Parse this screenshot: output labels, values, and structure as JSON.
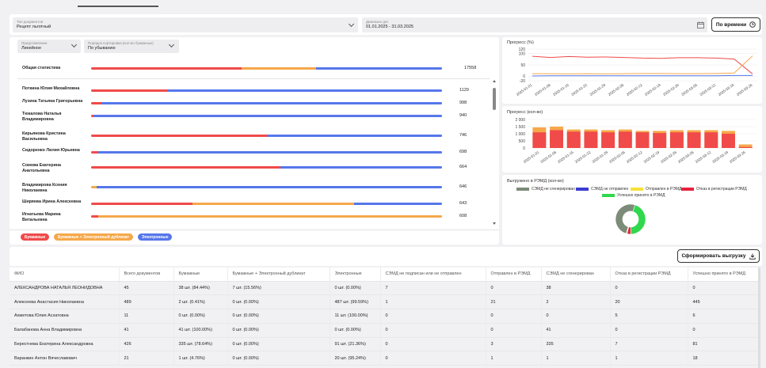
{
  "filters": {
    "doc_type": {
      "label": "Тип документов",
      "value": "Рецепт льготный"
    },
    "date_range": {
      "label": "Диапазон дат",
      "value": "01.01.2025 - 31.03.2025"
    },
    "time_button": "По времени",
    "view": {
      "label": "Представление",
      "value": "Линейное"
    },
    "sort": {
      "label": "Порядок сортировки (кол-во бумажных)",
      "value": "По убыванию"
    }
  },
  "colors": {
    "paper": "#f04a4a",
    "paper_electronic": "#f6a84a",
    "electronic": "#5677ea",
    "not_generated": "#7d8b79",
    "not_sent": "#3b3bd1",
    "sent": "#f6e13b",
    "refused": "#e8213d",
    "accepted": "#2fd84c"
  },
  "overall": {
    "name": "Общая статистика",
    "count": "17558",
    "paper": 43,
    "paper_electronic": 21,
    "electronic": 36
  },
  "employees": [
    {
      "name": "Поткина Юлия Михайловна",
      "count": "1129",
      "paper": 22,
      "paper_electronic": 0,
      "electronic": 78
    },
    {
      "name": "Лузина Татьяна Григорьевна",
      "count": "998",
      "paper": 3,
      "paper_electronic": 0,
      "electronic": 97
    },
    {
      "name": "Тюкалова Наталья Владимировна",
      "count": "940",
      "paper": 0.6,
      "paper_electronic": 0,
      "electronic": 99.4
    },
    {
      "name": "Кирьянова Кристина Васильевна",
      "count": "746",
      "paper": 50,
      "paper_electronic": 0,
      "electronic": 50
    },
    {
      "name": "Сидоренко Лилия Юрьевна",
      "count": "698",
      "paper": 2,
      "paper_electronic": 0,
      "electronic": 98
    },
    {
      "name": "Сомова Екатерина Анатольевна",
      "count": "664",
      "paper": 54,
      "paper_electronic": 0,
      "electronic": 46
    },
    {
      "name": "Владимирова Ксения Николаевна",
      "count": "646",
      "paper": 0,
      "paper_electronic": 1.5,
      "electronic": 98.5
    },
    {
      "name": "Ширяева Ирина Алексеевна",
      "count": "643",
      "paper": 29,
      "paper_electronic": 46,
      "electronic": 25
    },
    {
      "name": "Игнатьева Марина Витальевна",
      "count": "608",
      "paper": 2,
      "paper_electronic": 98,
      "electronic": 0
    }
  ],
  "legend": {
    "paper": "Бумажные",
    "paper_electronic": "Бумажные + Электронный дубликат",
    "electronic": "Электронные"
  },
  "progress_pct": {
    "title": "Прогресс (%)",
    "y_ticks": [
      "120",
      "100",
      "50",
      "0",
      "-20"
    ],
    "ylim": [
      -20,
      120
    ],
    "x": [
      "2025-01-01",
      "2025-01-08",
      "2025-01-15",
      "2025-01-22",
      "2025-01-29",
      "2025-02-05",
      "2025-02-12",
      "2025-02-19",
      "2025-02-26",
      "2025-03-05",
      "2025-03-12",
      "2025-03-19",
      "2025-03-26"
    ],
    "series": [
      {
        "values": [
          88,
          83,
          87,
          84,
          85,
          83,
          80,
          79,
          82,
          82,
          80,
          76,
          10
        ]
      },
      {
        "values": [
          11,
          11,
          10,
          11,
          10,
          11,
          12,
          12,
          11,
          11,
          12,
          14,
          90
        ]
      },
      {
        "values": [
          1,
          2,
          2,
          2,
          2,
          2,
          2,
          2,
          2,
          2,
          2,
          3,
          3
        ]
      }
    ]
  },
  "progress_cnt": {
    "title": "Прогресс (кол-во)",
    "y_ticks": [
      "2 000",
      "1 500",
      "1 000",
      "500",
      "0"
    ],
    "ylim": [
      0,
      2000
    ],
    "x": [
      "2025-01-01",
      "2025-01-08",
      "2025-01-15",
      "2025-01-22",
      "2025-01-29",
      "2025-02-05",
      "2025-02-12",
      "2025-02-19",
      "2025-02-26",
      "2025-03-05",
      "2025-03-12",
      "2025-03-19",
      "2025-03-26"
    ],
    "red": [
      1100,
      1250,
      1150,
      1150,
      1100,
      1150,
      1100,
      1050,
      1100,
      1100,
      1100,
      1000,
      70
    ],
    "orange": [
      1450,
      1500,
      1300,
      1300,
      1250,
      1300,
      1200,
      1200,
      1250,
      1250,
      1250,
      1200,
      250
    ],
    "blue": [
      0,
      0,
      0,
      0,
      0,
      0,
      0,
      0,
      0,
      0,
      0,
      0,
      0
    ]
  },
  "remd": {
    "title": "Выгружено в РЭМД (кол-во)",
    "legend": [
      "СЭМД не сгенерирован",
      "СЭМД не отправлен",
      "Отправлен в РЭМД",
      "Отказ в регистрации РЭМД",
      "Успешно принято в РЭМД"
    ],
    "slices": [
      {
        "label": "Успешно принято в РЭМД",
        "value": 45
      },
      {
        "label": "Отказ в регистрации РЭМД",
        "value": 4
      },
      {
        "label": "Отправлен в РЭМД",
        "value": 1
      },
      {
        "label": "СЭМД не сгенерирован",
        "value": 50
      }
    ]
  },
  "export_button": "Сформировать выгрузку",
  "table": {
    "headers": [
      "ФИО",
      "Всего документов",
      "Бумажные",
      "Бумажные + Электронный дубликат",
      "Электронные",
      "СЭМД не подписан или не отправлен",
      "Отправлен в РЭМД",
      "СЭМД не сгенерирован",
      "Отказ в регистрации РЭМД",
      "Успешно принято в РЭМД"
    ],
    "rows": [
      [
        "АЛЕКСАНДРОВА НАТАЛЬЯ ЛЕОНИДОВНА",
        "45",
        "38 шт. (84.44%)",
        "7 шт. (15.56%)",
        "0 шт. (0.00%)",
        "7",
        "0",
        "38",
        "0",
        "0"
      ],
      [
        "Алексеева Анастасия Николаевна",
        "489",
        "2 шт. (0.41%)",
        "0 шт. (0.00%)",
        "487 шт. (99.59%)",
        "1",
        "21",
        "2",
        "20",
        "445"
      ],
      [
        "Ахметова Юлия Асхатовна",
        "11",
        "0 шт. (0.00%)",
        "0 шт. (0.00%)",
        "11 шт. (100.00%)",
        "0",
        "0",
        "0",
        "5",
        "6"
      ],
      [
        "Балабанова Анна Владимировна",
        "41",
        "41 шт. (100.00%)",
        "0 шт. (0.00%)",
        "0 шт. (0.00%)",
        "0",
        "0",
        "41",
        "0",
        "0"
      ],
      [
        "Берестнева Екатерина Александровна",
        "426",
        "335 шт. (78.64%)",
        "0 шт. (0.00%)",
        "91 шт. (21.36%)",
        "0",
        "3",
        "335",
        "7",
        "81"
      ],
      [
        "Варанкин Антон Вячеславович",
        "21",
        "1 шт. (4.76%)",
        "0 шт. (0.00%)",
        "20 шт. (95.24%)",
        "0",
        "1",
        "1",
        "1",
        "18"
      ]
    ]
  }
}
